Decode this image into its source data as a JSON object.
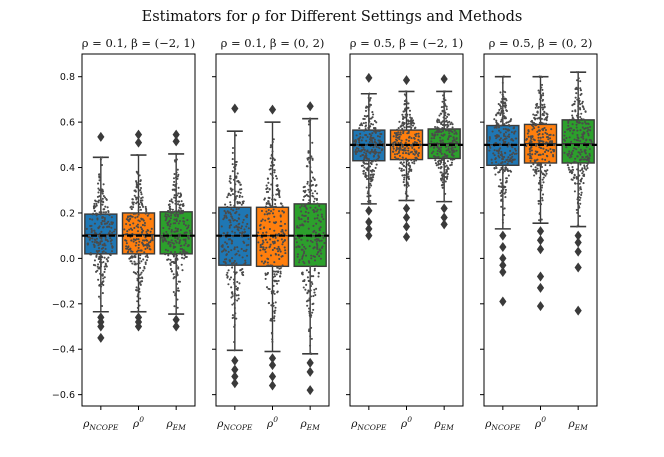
{
  "chart_data": {
    "type": "box",
    "title": "Estimators for ρ for Different Settings and Methods",
    "categories": [
      "ρNCOPE",
      "ρ⁰",
      "ρEM"
    ],
    "category_parts": [
      {
        "base": "ρ",
        "sub": "NCOPE",
        "sup": ""
      },
      {
        "base": "ρ",
        "sub": "",
        "sup": "0"
      },
      {
        "base": "ρ",
        "sub": "EM",
        "sup": ""
      }
    ],
    "colors": [
      "#1f77b4",
      "#ff7f0e",
      "#2ca02c"
    ],
    "ylim": [
      -0.65,
      0.9
    ],
    "yticks": [
      -0.6,
      -0.4,
      -0.2,
      0.0,
      0.2,
      0.4,
      0.6,
      0.8
    ],
    "ytick_labels": [
      "−0.6",
      "−0.4",
      "−0.2",
      "0.0",
      "0.2",
      "0.4",
      "0.6",
      "0.8"
    ],
    "panels": [
      {
        "title": "ρ = 0.1, β = (−2, 1)",
        "true_value": 0.1,
        "boxes": [
          {
            "whislo": -0.235,
            "q1": 0.02,
            "med": 0.105,
            "q3": 0.195,
            "whishi": 0.445,
            "fliers": [
              -0.26,
              -0.28,
              -0.3,
              -0.35,
              0.535
            ]
          },
          {
            "whislo": -0.235,
            "q1": 0.02,
            "med": 0.105,
            "q3": 0.2,
            "whishi": 0.455,
            "fliers": [
              -0.26,
              -0.28,
              -0.3,
              0.545,
              0.51
            ]
          },
          {
            "whislo": -0.245,
            "q1": 0.02,
            "med": 0.1,
            "q3": 0.205,
            "whishi": 0.46,
            "fliers": [
              -0.27,
              -0.3,
              0.545,
              0.515
            ]
          }
        ]
      },
      {
        "title": "ρ = 0.1, β = (0, 2)",
        "true_value": 0.1,
        "boxes": [
          {
            "whislo": -0.405,
            "q1": -0.03,
            "med": 0.1,
            "q3": 0.225,
            "whishi": 0.56,
            "fliers": [
              -0.45,
              -0.49,
              -0.52,
              -0.55,
              0.66
            ]
          },
          {
            "whislo": -0.41,
            "q1": -0.035,
            "med": 0.1,
            "q3": 0.225,
            "whishi": 0.6,
            "fliers": [
              -0.44,
              -0.47,
              -0.52,
              -0.56,
              0.655
            ]
          },
          {
            "whislo": -0.42,
            "q1": -0.035,
            "med": 0.1,
            "q3": 0.24,
            "whishi": 0.615,
            "fliers": [
              -0.46,
              -0.5,
              -0.58,
              0.67
            ]
          }
        ]
      },
      {
        "title": "ρ = 0.5, β = (−2, 1)",
        "true_value": 0.5,
        "boxes": [
          {
            "whislo": 0.24,
            "q1": 0.43,
            "med": 0.5,
            "q3": 0.565,
            "whishi": 0.725,
            "fliers": [
              0.21,
              0.16,
              0.13,
              0.1,
              0.795
            ]
          },
          {
            "whislo": 0.255,
            "q1": 0.435,
            "med": 0.5,
            "q3": 0.565,
            "whishi": 0.735,
            "fliers": [
              0.22,
              0.18,
              0.14,
              0.095,
              0.785
            ]
          },
          {
            "whislo": 0.25,
            "q1": 0.44,
            "med": 0.505,
            "q3": 0.57,
            "whishi": 0.735,
            "fliers": [
              0.22,
              0.18,
              0.15,
              0.79
            ]
          }
        ]
      },
      {
        "title": "ρ = 0.5, β = (0, 2)",
        "true_value": 0.5,
        "boxes": [
          {
            "whislo": 0.13,
            "q1": 0.41,
            "med": 0.5,
            "q3": 0.585,
            "whishi": 0.8,
            "fliers": [
              0.1,
              0.05,
              0.0,
              -0.03,
              -0.06,
              -0.19
            ]
          },
          {
            "whislo": 0.155,
            "q1": 0.42,
            "med": 0.505,
            "q3": 0.59,
            "whishi": 0.8,
            "fliers": [
              0.12,
              0.08,
              0.04,
              -0.08,
              -0.13,
              -0.21
            ]
          },
          {
            "whislo": 0.14,
            "q1": 0.42,
            "med": 0.505,
            "q3": 0.61,
            "whishi": 0.82,
            "fliers": [
              0.1,
              0.07,
              0.03,
              -0.04,
              -0.23
            ]
          }
        ]
      }
    ]
  }
}
